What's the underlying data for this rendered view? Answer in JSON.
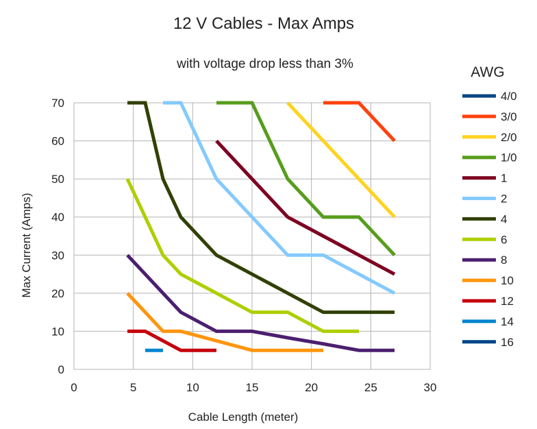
{
  "chart_data": {
    "type": "line",
    "title": "12 V Cables -  Max Amps",
    "subtitle": "with voltage drop less than 3%",
    "xlabel": "Cable Length (meter)",
    "ylabel": "Max Current (Amps)",
    "xlim": [
      0,
      30
    ],
    "ylim": [
      0,
      70
    ],
    "xticks": [
      0,
      5,
      10,
      15,
      20,
      25,
      30
    ],
    "yticks": [
      0,
      10,
      20,
      30,
      40,
      50,
      60,
      70
    ],
    "grid": true,
    "legend_title": "AWG",
    "legend_position": "right",
    "series": [
      {
        "name": "4/0",
        "color": "#004586",
        "points": []
      },
      {
        "name": "3/0",
        "color": "#ff420e",
        "points": [
          [
            21,
            70
          ],
          [
            24,
            70
          ],
          [
            27,
            60
          ]
        ]
      },
      {
        "name": "2/0",
        "color": "#ffd320",
        "points": [
          [
            18,
            70
          ],
          [
            21,
            60
          ],
          [
            24,
            50
          ],
          [
            27,
            40
          ]
        ]
      },
      {
        "name": "1/0",
        "color": "#579d1c",
        "points": [
          [
            12,
            70
          ],
          [
            15,
            70
          ],
          [
            18,
            50
          ],
          [
            21,
            40
          ],
          [
            24,
            40
          ],
          [
            27,
            30
          ]
        ]
      },
      {
        "name": "1",
        "color": "#7e0021",
        "points": [
          [
            12,
            60
          ],
          [
            15,
            50
          ],
          [
            18,
            40
          ],
          [
            21,
            35
          ],
          [
            24,
            30
          ],
          [
            27,
            25
          ]
        ]
      },
      {
        "name": "2",
        "color": "#83caff",
        "points": [
          [
            7.5,
            70
          ],
          [
            9,
            70
          ],
          [
            12,
            50
          ],
          [
            15,
            40
          ],
          [
            18,
            30
          ],
          [
            21,
            30
          ],
          [
            24,
            25
          ],
          [
            27,
            20
          ]
        ]
      },
      {
        "name": "4",
        "color": "#314004",
        "points": [
          [
            4.5,
            70
          ],
          [
            6,
            70
          ],
          [
            7.5,
            50
          ],
          [
            9,
            40
          ],
          [
            12,
            30
          ],
          [
            15,
            25
          ],
          [
            18,
            20
          ],
          [
            21,
            15
          ],
          [
            24,
            15
          ],
          [
            27,
            15
          ]
        ]
      },
      {
        "name": "6",
        "color": "#aecf00",
        "points": [
          [
            4.5,
            50
          ],
          [
            6,
            40
          ],
          [
            7.5,
            30
          ],
          [
            9,
            25
          ],
          [
            12,
            20
          ],
          [
            15,
            15
          ],
          [
            18,
            15
          ],
          [
            21,
            10
          ],
          [
            24,
            10
          ]
        ]
      },
      {
        "name": "8",
        "color": "#4b1f6f",
        "points": [
          [
            4.5,
            30
          ],
          [
            6,
            25
          ],
          [
            7.5,
            20
          ],
          [
            9,
            15
          ],
          [
            12,
            10
          ],
          [
            15,
            10
          ],
          [
            18,
            8.3
          ],
          [
            21,
            6.7
          ],
          [
            24,
            5
          ],
          [
            27,
            5
          ]
        ]
      },
      {
        "name": "10",
        "color": "#ff950e",
        "points": [
          [
            4.5,
            20
          ],
          [
            6,
            15
          ],
          [
            7.5,
            10
          ],
          [
            9,
            10
          ],
          [
            12,
            7.5
          ],
          [
            15,
            5
          ],
          [
            18,
            5
          ],
          [
            21,
            5
          ]
        ]
      },
      {
        "name": "12",
        "color": "#c5000b",
        "points": [
          [
            4.5,
            10
          ],
          [
            6,
            10
          ],
          [
            7.5,
            7.5
          ],
          [
            9,
            5
          ],
          [
            12,
            5
          ]
        ]
      },
      {
        "name": "14",
        "color": "#0084d1",
        "points": [
          [
            6,
            5
          ],
          [
            7.5,
            5
          ]
        ]
      },
      {
        "name": "16",
        "color": "#004586",
        "points": []
      }
    ]
  }
}
